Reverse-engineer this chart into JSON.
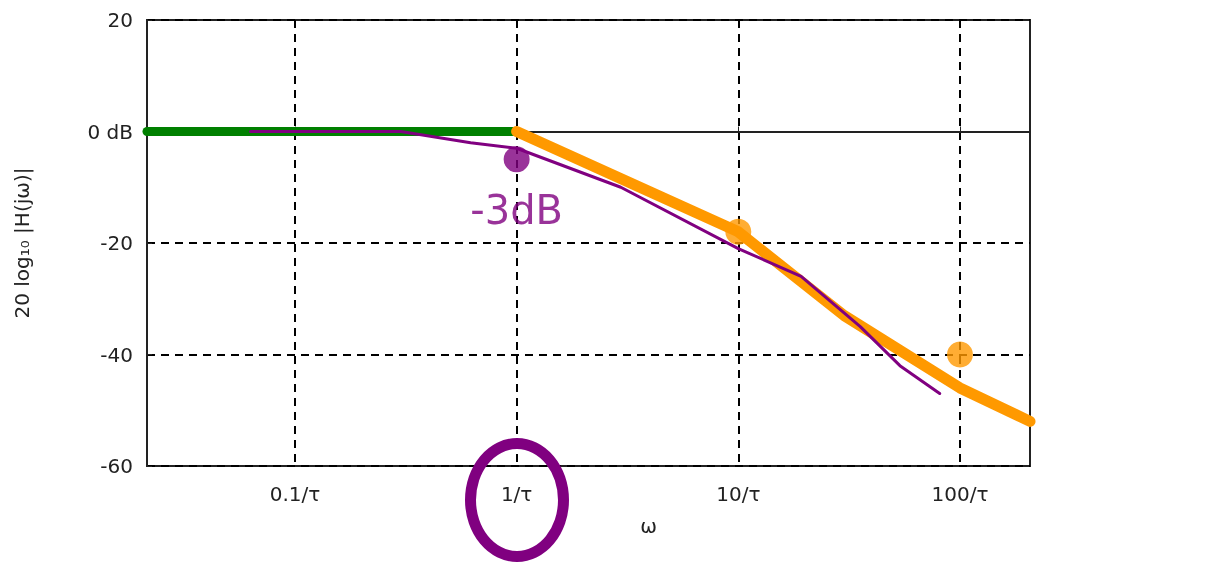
{
  "chart_data": {
    "type": "line",
    "xlabel": "ω",
    "ylabel": "20 log₁₀ |H(jω)|",
    "log": "x",
    "grid": true,
    "xlim": [
      0.0215,
      207
    ],
    "xticks": [
      {
        "value": 0.1,
        "label": "0.1/τ"
      },
      {
        "value": 1,
        "label": "1/τ"
      },
      {
        "value": 10,
        "label": "10/τ"
      },
      {
        "value": 100,
        "label": "100/τ"
      }
    ],
    "ylim": [
      -60,
      20
    ],
    "yticks": [
      20,
      {
        "value": 0,
        "label": "0 dB"
      },
      -20,
      -40,
      -60
    ],
    "annotations": [
      {
        "text": "-3dB",
        "x": 1,
        "y": -3
      }
    ],
    "series": [
      {
        "color": "#008000",
        "x": [
          0.0215,
          0.1,
          0.3,
          1
        ],
        "values": [
          0,
          0,
          0,
          0
        ]
      },
      {
        "color": "#ff9900",
        "x": [
          1,
          10,
          30,
          100,
          207
        ],
        "values": [
          0,
          -18,
          -33,
          -46,
          -52
        ]
      },
      {
        "color": "#800080",
        "x": [
          0.063,
          0.3,
          0.62,
          1,
          2.95,
          10,
          19.2,
          35.5,
          53.6,
          81
        ],
        "values": [
          0,
          0,
          -2,
          -3,
          -10,
          -21,
          -26,
          -35,
          -42,
          -47
        ]
      },
      {
        "type": "scatter",
        "marker": "circle",
        "color": "#800080",
        "x": [
          1
        ],
        "values": [
          -5
        ]
      },
      {
        "type": "scatter",
        "marker": "circle",
        "color": "#ff9900",
        "x": [
          10,
          100
        ],
        "values": [
          -18,
          -40
        ]
      }
    ]
  }
}
